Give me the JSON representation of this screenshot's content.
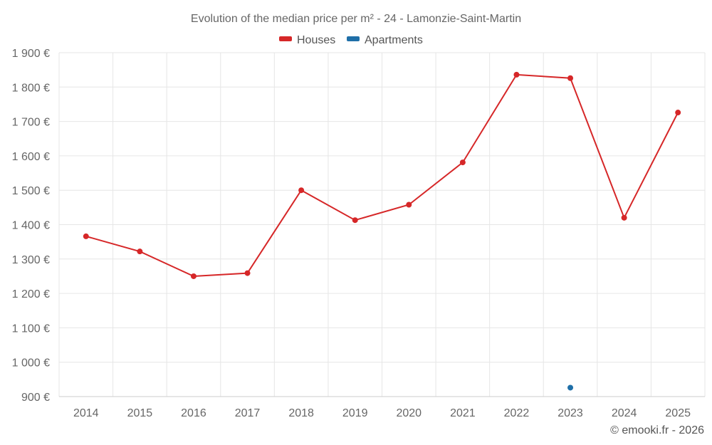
{
  "chart_data": {
    "type": "line",
    "title": "Evolution of the median price per m² - 24 - Lamonzie-Saint-Martin",
    "categories": [
      "2014",
      "2015",
      "2016",
      "2017",
      "2018",
      "2019",
      "2020",
      "2021",
      "2022",
      "2023",
      "2024",
      "2025"
    ],
    "series": [
      {
        "name": "Houses",
        "color": "#d62728",
        "values": [
          1366,
          1322,
          1250,
          1259,
          1500,
          1413,
          1458,
          1581,
          1836,
          1826,
          1420,
          1726
        ]
      },
      {
        "name": "Apartments",
        "color": "#1f6fa8",
        "values": [
          null,
          null,
          null,
          null,
          null,
          null,
          null,
          null,
          null,
          926,
          null,
          null
        ]
      }
    ],
    "ylim": [
      900,
      1900
    ],
    "yticks": [
      900,
      1000,
      1100,
      1200,
      1300,
      1400,
      1500,
      1600,
      1700,
      1800,
      1900
    ],
    "ytick_labels": [
      "900 €",
      "1 000 €",
      "1 100 €",
      "1 200 €",
      "1 300 €",
      "1 400 €",
      "1 500 €",
      "1 600 €",
      "1 700 €",
      "1 800 €",
      "1 900 €"
    ],
    "xlabel": "",
    "ylabel": "",
    "grid": true,
    "legend_position": "top-center"
  },
  "credit": "© emooki.fr - 2026"
}
